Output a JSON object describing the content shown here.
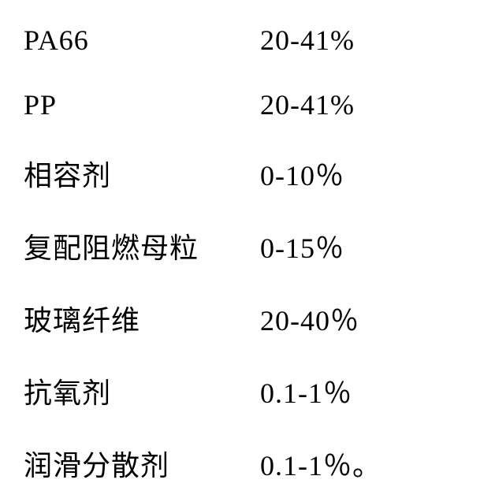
{
  "composition": {
    "type": "table",
    "rows": [
      {
        "label": "PA66",
        "value": "20-41%"
      },
      {
        "label": "PP",
        "value": "20-41%"
      },
      {
        "label": "相容剂",
        "value": "0-10％"
      },
      {
        "label": "复配阻燃母粒",
        "value": "0-15％"
      },
      {
        "label": "玻璃纤维",
        "value": "20-40％"
      },
      {
        "label": "抗氧剂",
        "value": "0.1-1％"
      },
      {
        "label": "润滑分散剂",
        "value": "0.1-1％。"
      }
    ],
    "styling": {
      "font_family": "SimSun",
      "font_size": 36,
      "text_color": "#000000",
      "background_color": "#ffffff",
      "label_column_width": 300,
      "row_gap": 40
    }
  }
}
